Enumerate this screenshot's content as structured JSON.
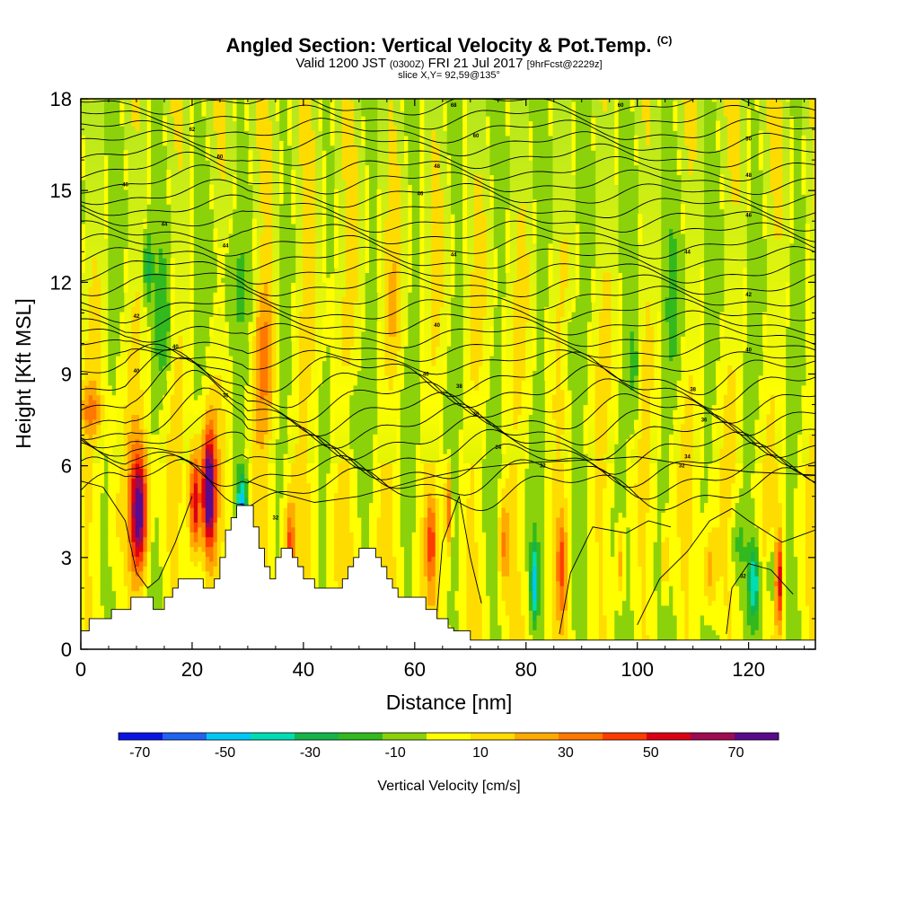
{
  "chart_data": {
    "type": "heatmap",
    "title": "Angled Section: Vertical Velocity & Pot.Temp.",
    "title_suffix": "(C)",
    "subtitle_main_a": "Valid 1200 JST",
    "subtitle_small_a": "(0300Z)",
    "subtitle_main_b": "FRI 21 Jul 2017",
    "subtitle_small_b": "[9hrFcst@2229z]",
    "slice_label": "slice X,Y= 92,59@135°",
    "xlabel": "Distance [nm]",
    "ylabel": "Height [Kft MSL]",
    "xlim": [
      0,
      132
    ],
    "ylim": [
      0,
      18
    ],
    "x_ticks": [
      0,
      20,
      40,
      60,
      80,
      100,
      120
    ],
    "y_ticks": [
      0,
      3,
      6,
      9,
      12,
      15,
      18
    ],
    "colorbar_title": "Vertical Velocity [cm/s]",
    "colorbar_range": [
      -75,
      80
    ],
    "colorbar_ticks": [
      -70,
      -50,
      -30,
      -10,
      10,
      30,
      50,
      70
    ],
    "colorbar_colors": [
      "#0a14e6",
      "#1e64f0",
      "#00c8f5",
      "#00dcb4",
      "#14b44b",
      "#32b91e",
      "#8cd20a",
      "#ffff00",
      "#ffdc00",
      "#ffaa00",
      "#ff7800",
      "#ff3c00",
      "#dc0014",
      "#a00a50",
      "#5a0a8c"
    ],
    "grid": false,
    "contour_labels": [
      {
        "text": "68",
        "x": 67,
        "y": 17.8
      },
      {
        "text": "60",
        "x": 97,
        "y": 17.8
      },
      {
        "text": "62",
        "x": 20,
        "y": 17.0
      },
      {
        "text": "60",
        "x": 71,
        "y": 16.8
      },
      {
        "text": "50",
        "x": 120,
        "y": 16.7
      },
      {
        "text": "60",
        "x": 25,
        "y": 16.1
      },
      {
        "text": "48",
        "x": 64,
        "y": 15.8
      },
      {
        "text": "48",
        "x": 120,
        "y": 15.5
      },
      {
        "text": "46",
        "x": 8,
        "y": 15.2
      },
      {
        "text": "46",
        "x": 61,
        "y": 14.9
      },
      {
        "text": "46",
        "x": 120,
        "y": 14.2
      },
      {
        "text": "44",
        "x": 15,
        "y": 13.9
      },
      {
        "text": "44",
        "x": 26,
        "y": 13.2
      },
      {
        "text": "44",
        "x": 67,
        "y": 12.9
      },
      {
        "text": "44",
        "x": 109,
        "y": 13.0
      },
      {
        "text": "42",
        "x": 120,
        "y": 11.6
      },
      {
        "text": "42",
        "x": 10,
        "y": 10.9
      },
      {
        "text": "40",
        "x": 64,
        "y": 10.6
      },
      {
        "text": "40",
        "x": 17,
        "y": 9.9
      },
      {
        "text": "40",
        "x": 120,
        "y": 9.8
      },
      {
        "text": "40",
        "x": 10,
        "y": 9.1
      },
      {
        "text": "40",
        "x": 62,
        "y": 9.0
      },
      {
        "text": "38",
        "x": 68,
        "y": 8.6
      },
      {
        "text": "38",
        "x": 110,
        "y": 8.5
      },
      {
        "text": "36",
        "x": 26,
        "y": 8.3
      },
      {
        "text": "36",
        "x": 71,
        "y": 7.7
      },
      {
        "text": "36",
        "x": 112,
        "y": 7.5
      },
      {
        "text": "34",
        "x": 75,
        "y": 6.6
      },
      {
        "text": "34",
        "x": 109,
        "y": 6.3
      },
      {
        "text": "32",
        "x": 83,
        "y": 6.0
      },
      {
        "text": "32",
        "x": 108,
        "y": 6.0
      },
      {
        "text": "32",
        "x": 35,
        "y": 4.3
      },
      {
        "text": "32",
        "x": 119,
        "y": 2.4
      }
    ]
  }
}
